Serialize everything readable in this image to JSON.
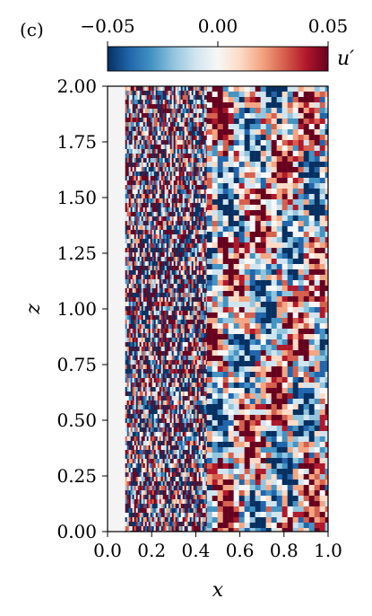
{
  "panel_label": "(c)",
  "chart_data": {
    "type": "heatmap",
    "title": "",
    "xlabel": "x",
    "ylabel": "z",
    "xlim": [
      0.0,
      1.0
    ],
    "ylim": [
      0.0,
      2.0
    ],
    "xticks": [
      "0.0",
      "0.2",
      "0.4",
      "0.6",
      "0.8",
      "1.0"
    ],
    "yticks": [
      "0.00",
      "0.25",
      "0.50",
      "0.75",
      "1.00",
      "1.25",
      "1.50",
      "1.75",
      "2.00"
    ],
    "colorbar": {
      "label": "u′",
      "range": [
        -0.05,
        0.05
      ],
      "ticks": [
        "−0.05",
        "0.00",
        "0.05"
      ],
      "colormap": "RdBu_r",
      "colors": [
        "#053061",
        "#2166ac",
        "#4393c3",
        "#92c5de",
        "#d1e5f0",
        "#f7f7f7",
        "#fddbc7",
        "#f4a582",
        "#d6604d",
        "#b2182b",
        "#67001f"
      ],
      "position": "top"
    },
    "field_description": {
      "empty_region_x": [
        0.0,
        0.08
      ],
      "fine_streak_region_x": [
        0.08,
        0.45
      ],
      "large_structures_region_x": [
        0.45,
        1.0
      ]
    }
  }
}
